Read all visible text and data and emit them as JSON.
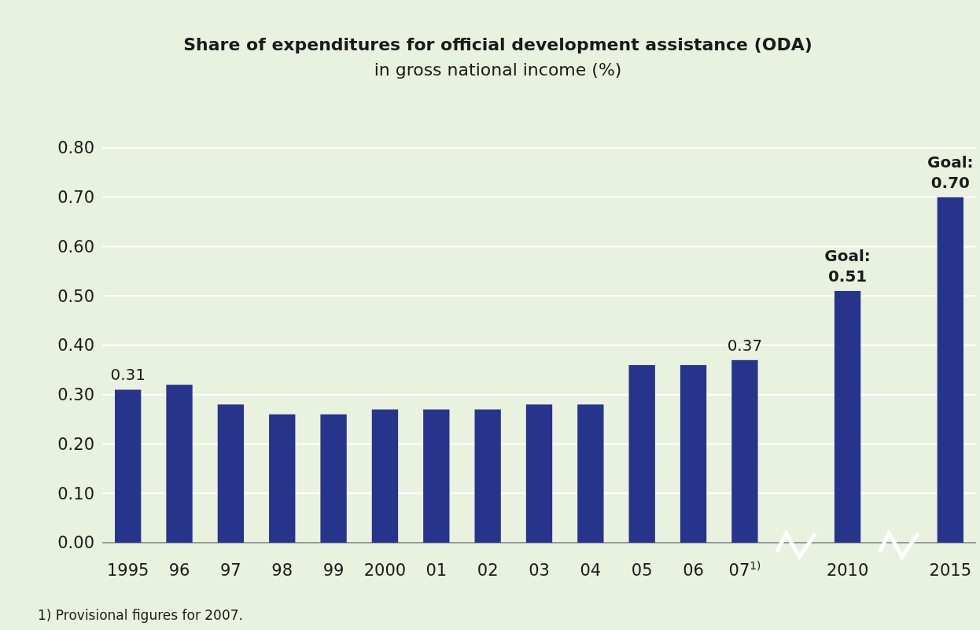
{
  "chart_data": {
    "type": "bar",
    "title": "Share of expenditures for official development assistance (ODA)",
    "subtitle": "in gross national income (%)",
    "categories": [
      "1995",
      "96",
      "97",
      "98",
      "99",
      "2000",
      "01",
      "02",
      "03",
      "04",
      "05",
      "06",
      "07$^{1)}$",
      null,
      "2010",
      null,
      "2015"
    ],
    "values": [
      0.31,
      0.32,
      0.28,
      0.26,
      0.26,
      0.27,
      0.27,
      0.27,
      0.28,
      0.28,
      0.36,
      0.36,
      0.37,
      null,
      0.51,
      null,
      0.7
    ],
    "value_labels": [
      "0.31",
      null,
      null,
      null,
      null,
      null,
      null,
      null,
      null,
      null,
      null,
      null,
      "0.37",
      null,
      "Goal: 0.51",
      null,
      "Goal: 0.70"
    ],
    "color": "#27348b",
    "ylim": [
      0,
      0.8
    ],
    "yticks": [
      {
        "value": 0,
        "label": "0.00"
      },
      {
        "value": 0.1,
        "label": "0.10"
      },
      {
        "value": 0.2,
        "label": "0.20"
      },
      {
        "value": 0.3,
        "label": "0.30"
      },
      {
        "value": 0.4,
        "label": "0.40"
      },
      {
        "value": 0.5,
        "label": "0.50"
      },
      {
        "value": 0.6,
        "label": "0.60"
      },
      {
        "value": 0.7,
        "label": "0.70"
      },
      {
        "value": 0.8,
        "label": "0.80"
      }
    ],
    "grid": "y",
    "annotations": [
      "1) Provisional figures for 2007."
    ]
  }
}
